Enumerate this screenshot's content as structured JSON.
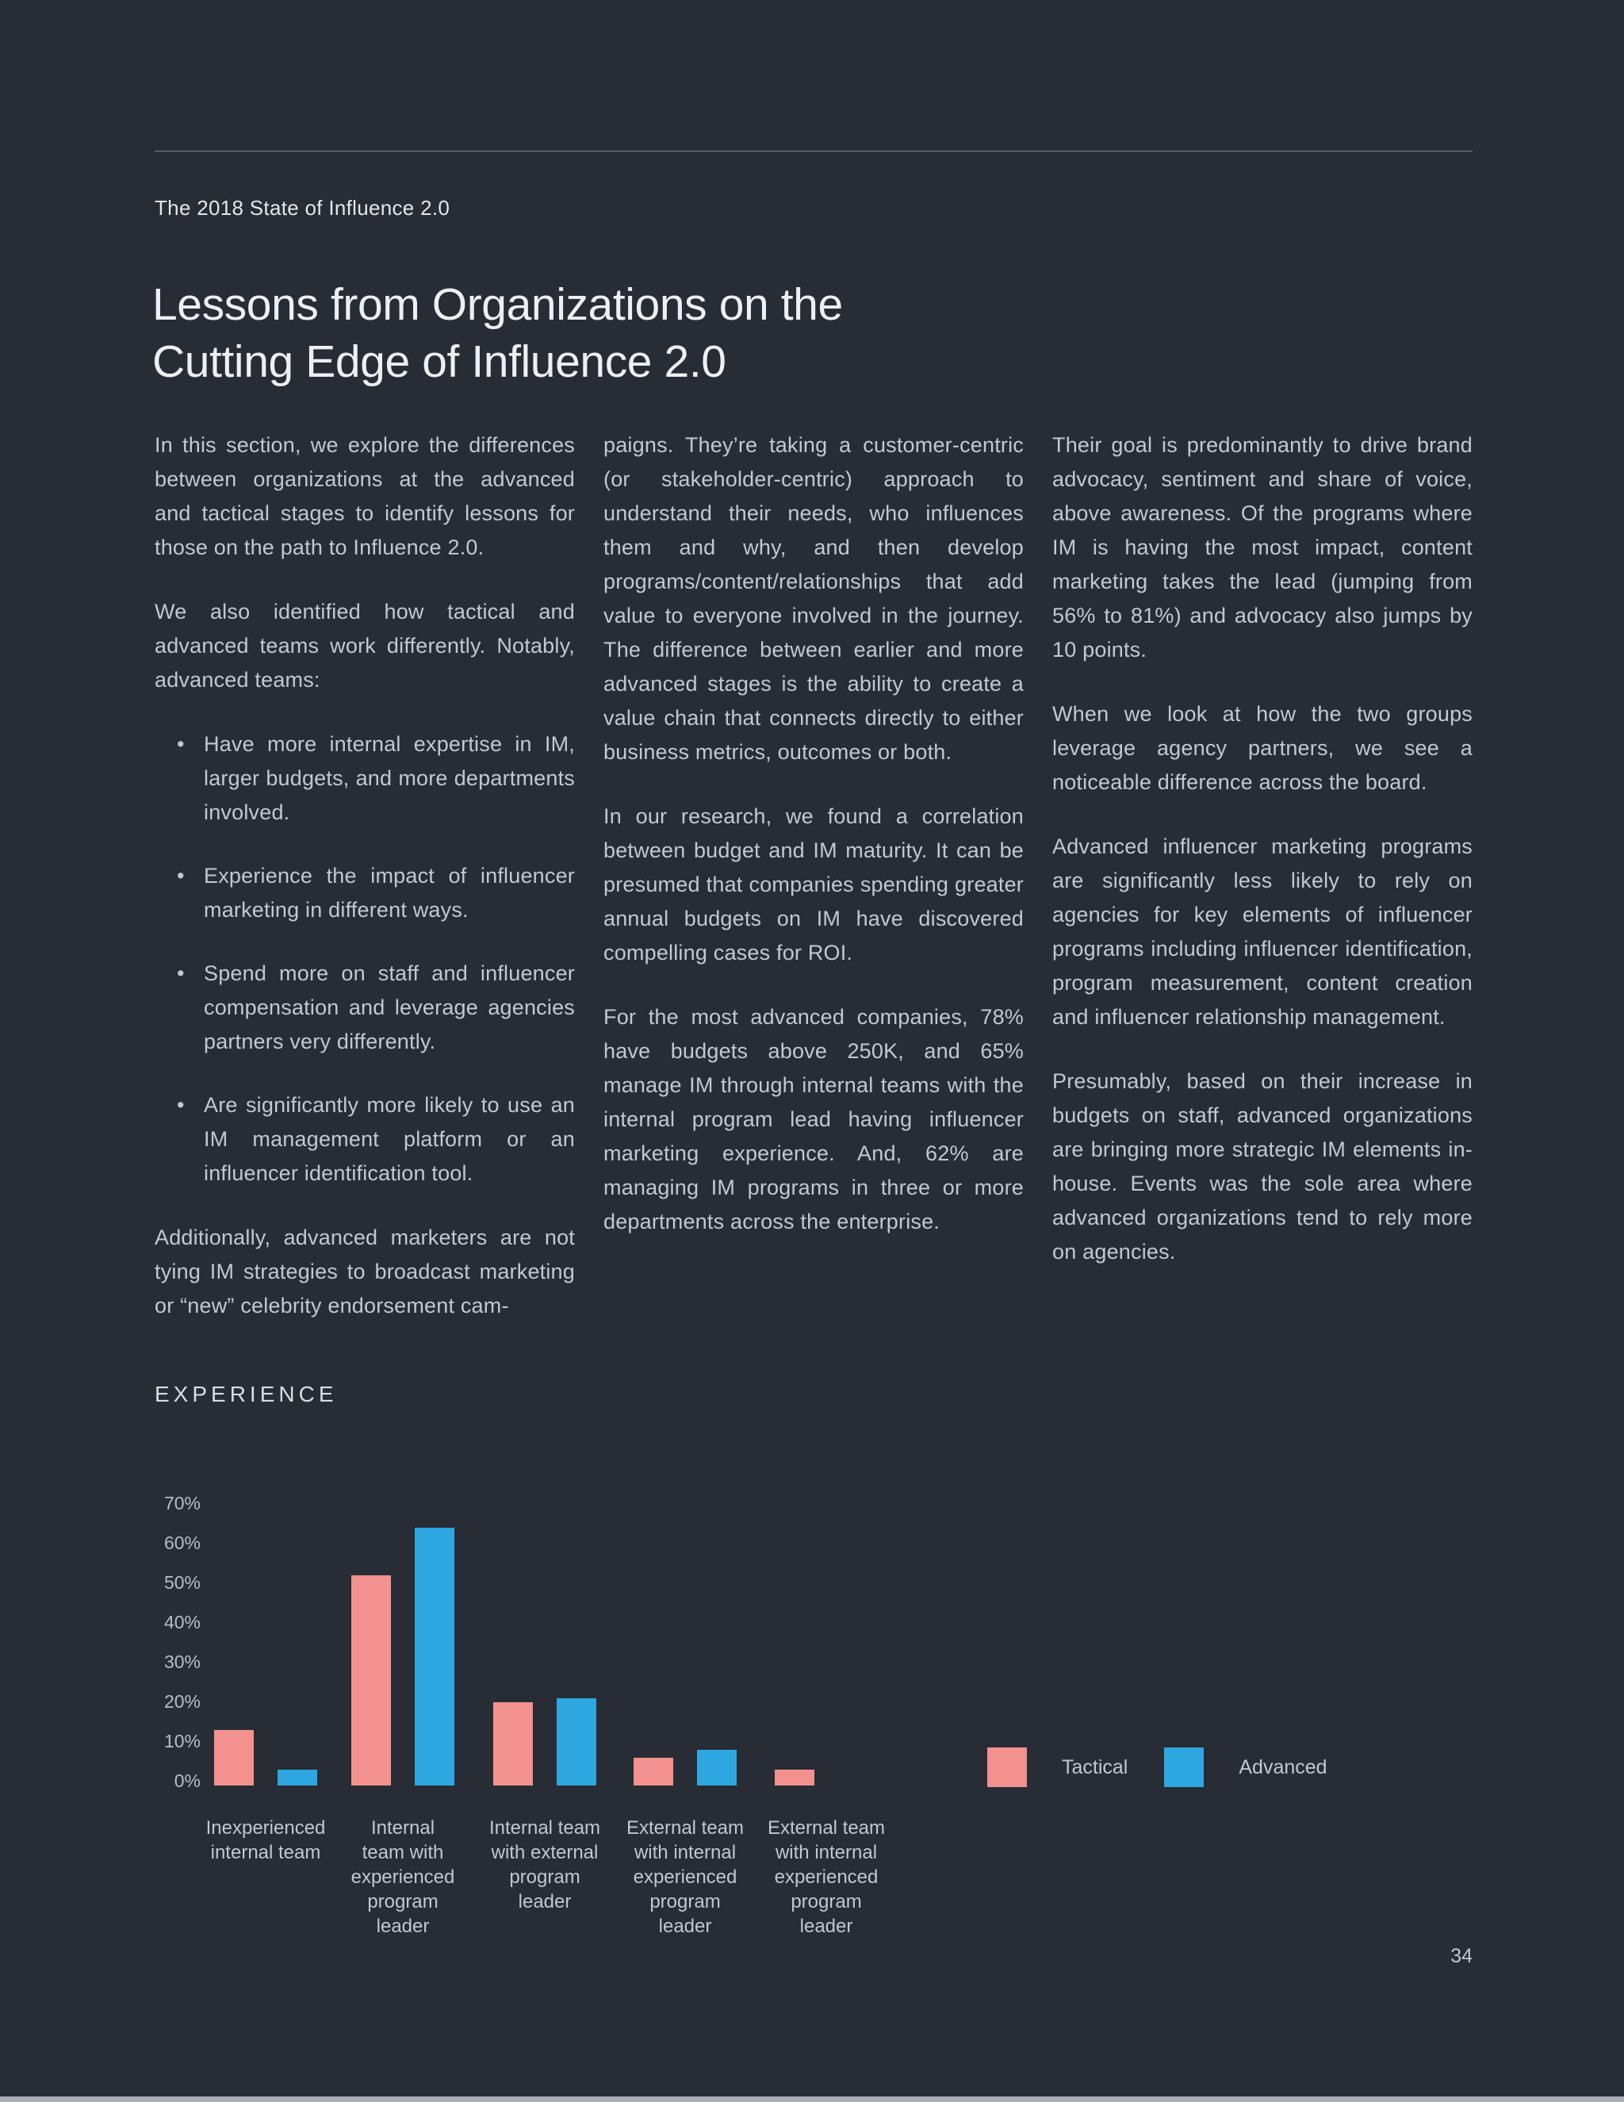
{
  "page": {
    "header": "The 2018 State of Influence 2.0",
    "title_line1": "Lessons from Organizations on the",
    "title_line2": "Cutting Edge of Influence 2.0",
    "page_number": "34"
  },
  "body": {
    "col1": {
      "para1": "In this section, we explore the differences between organizations at the advanced and tactical stages to identify lessons for those on the path to Influence 2.0.",
      "para2": "We also identified how tactical and advanced teams work differently. Notably, advanced teams:",
      "bullets": [
        "Have more internal expertise in IM, larger budgets, and more departments involved.",
        "Experience the impact of influencer marketing in different ways.",
        "Spend more on staff and influencer compensation and leverage agencies partners very differently.",
        "Are significantly more likely to use an IM management platform or an influencer identification tool."
      ],
      "para3": "Additionally, advanced marketers are not tying IM strategies to broadcast marketing or “new” celebrity endorsement cam-"
    },
    "col2": {
      "para1": "paigns. They’re taking a customer-centric (or stakeholder-centric) approach to understand their needs, who influences them and why, and then develop programs/content/relationships that add value to everyone involved in the journey. The difference between earlier and more advanced stages is the ability to create a value chain that connects directly to either business metrics, outcomes or both.",
      "para2": "In our research, we found a correlation between budget and IM maturity. It can be presumed that companies spending greater annual budgets on IM have discovered compelling cases for ROI.",
      "para3": "For the most advanced companies, 78% have budgets above 250K, and 65% manage IM through internal teams with the internal program lead having influencer marketing experience. And, 62% are managing IM programs in three or more departments across the enterprise."
    },
    "col3": {
      "para1": "Their goal is predominantly to drive brand advocacy, sentiment and share of voice, above awareness. Of the programs where IM is having the most impact, content marketing takes the lead (jumping from 56% to 81%) and advocacy also jumps by 10 points.",
      "para2": "When we look at how the two groups leverage agency partners, we see a noticeable difference across the board.",
      "para3": "Advanced influencer marketing programs are significantly less likely to rely on agencies for key elements of influencer programs including influencer identification, program measurement, content creation and influencer relationship management.",
      "para4": "Presumably, based on their increase in budgets on staff, advanced organizations are bringing more strategic IM elements in-house. Events was the sole area where advanced organizations tend to rely more on agencies."
    }
  },
  "chart_data": {
    "type": "bar",
    "title": "EXPERIENCE",
    "categories": [
      "Inexperienced\ninternal team",
      "Internal\nteam with\nexperienced\nprogram\nleader",
      "Internal team\nwith external\nprogram\nleader",
      "External team\nwith internal\nexperienced\nprogram\nleader",
      "External team\nwith internal\nexperienced\nprogram\nleader"
    ],
    "series": [
      {
        "name": "Tactical",
        "color": "#f2918e",
        "values": [
          14,
          53,
          21,
          7,
          4
        ]
      },
      {
        "name": "Advanced",
        "color": "#2ea7e0",
        "values": [
          4,
          65,
          22,
          9,
          0
        ]
      }
    ],
    "y_ticks": [
      70,
      60,
      50,
      40,
      30,
      20,
      10,
      0
    ],
    "y_tick_suffix": "%",
    "ylim": [
      0,
      70
    ],
    "grid": false,
    "legend_position": "right-of-bars"
  },
  "colors": {
    "background": "#272c35",
    "heading_text": "#edeff2",
    "body_text": "#c4c8cf",
    "tactical": "#f2918e",
    "advanced": "#2ea7e0"
  }
}
